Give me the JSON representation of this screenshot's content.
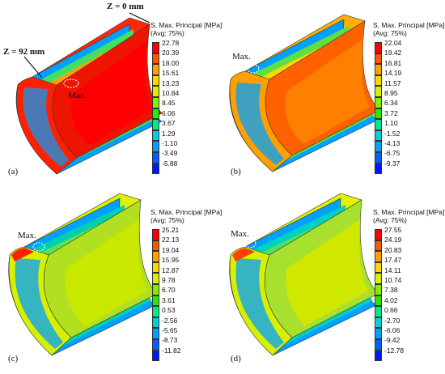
{
  "legend_colors": [
    "#ff0000",
    "#ff5500",
    "#ffa000",
    "#ffd400",
    "#d8f000",
    "#80f000",
    "#2ee600",
    "#00e88a",
    "#00d0d8",
    "#00a0ff",
    "#0060ff",
    "#0018ff"
  ],
  "panels": [
    {
      "letter": "(a)",
      "legend_title": "S, Max. Principal",
      "legend_unit": "[MPa]",
      "legend_avg": "(Avg: 75%)",
      "legend_values": [
        "22.78",
        "20.39",
        "18.00",
        "15.61",
        "13.23",
        "10.84",
        "8.45",
        "6.06",
        "3.67",
        "1.29",
        "-1.10",
        "-3.49",
        "-5.88"
      ],
      "max_label": "Max.",
      "z_start": "Z = 0 mm",
      "z_end": "Z = 92 mm",
      "colors": {
        "outer": "#ff0000",
        "inner": "#ee1500",
        "rim": "#ff2000",
        "top": "#ff2800",
        "band1": "#ffa000",
        "band2": "#40e060",
        "band3": "#00a0ff"
      }
    },
    {
      "letter": "(b)",
      "legend_title": "S, Max. Principal",
      "legend_unit": "[MPa]",
      "legend_avg": "(Avg: 75%)",
      "legend_values": [
        "22.04",
        "19.42",
        "16.81",
        "14.19",
        "11.57",
        "8.95",
        "6.34",
        "3.72",
        "1.10",
        "-1.52",
        "-4.13",
        "-6.75",
        "-9.37"
      ],
      "max_label": "Max.",
      "colors": {
        "outer": "#ff8000",
        "inner": "#ff6000",
        "rim": "#ffa000",
        "top": "#ffb000",
        "band1": "#ffd400",
        "band2": "#60e040",
        "band3": "#00a0ff"
      }
    },
    {
      "letter": "(c)",
      "legend_title": "S, Max. Principal",
      "legend_unit": "[MPa]",
      "legend_avg": "(Avg: 75%)",
      "legend_values": [
        "25.21",
        "22.13",
        "19.04",
        "15.95",
        "12.87",
        "9.78",
        "6.70",
        "3.61",
        "0.53",
        "-2.56",
        "-5.65",
        "-8.73",
        "-11.82"
      ],
      "max_label": "Max.",
      "colors": {
        "outer": "#c8e800",
        "inner": "#b0e020",
        "rim": "#d8f000",
        "top": "#e0f000",
        "band1": "#60e050",
        "band2": "#00d0b0",
        "band3": "#00a0ff"
      }
    },
    {
      "letter": "(d)",
      "legend_title": "S, Max. Principal",
      "legend_unit": "[MPa]",
      "legend_avg": "(Avg: 75%)",
      "legend_values": [
        "27.55",
        "24.19",
        "20.83",
        "17.47",
        "14.11",
        "10.74",
        "7.38",
        "4.02",
        "0.66",
        "-2.70",
        "-6.06",
        "-9.42",
        "-12.78"
      ],
      "max_label": "Max.",
      "colors": {
        "outer": "#d0e800",
        "inner": "#a8e030",
        "rim": "#d8f000",
        "top": "#e4f000",
        "band1": "#50e060",
        "band2": "#00d0c0",
        "band3": "#00a0ff"
      }
    }
  ]
}
